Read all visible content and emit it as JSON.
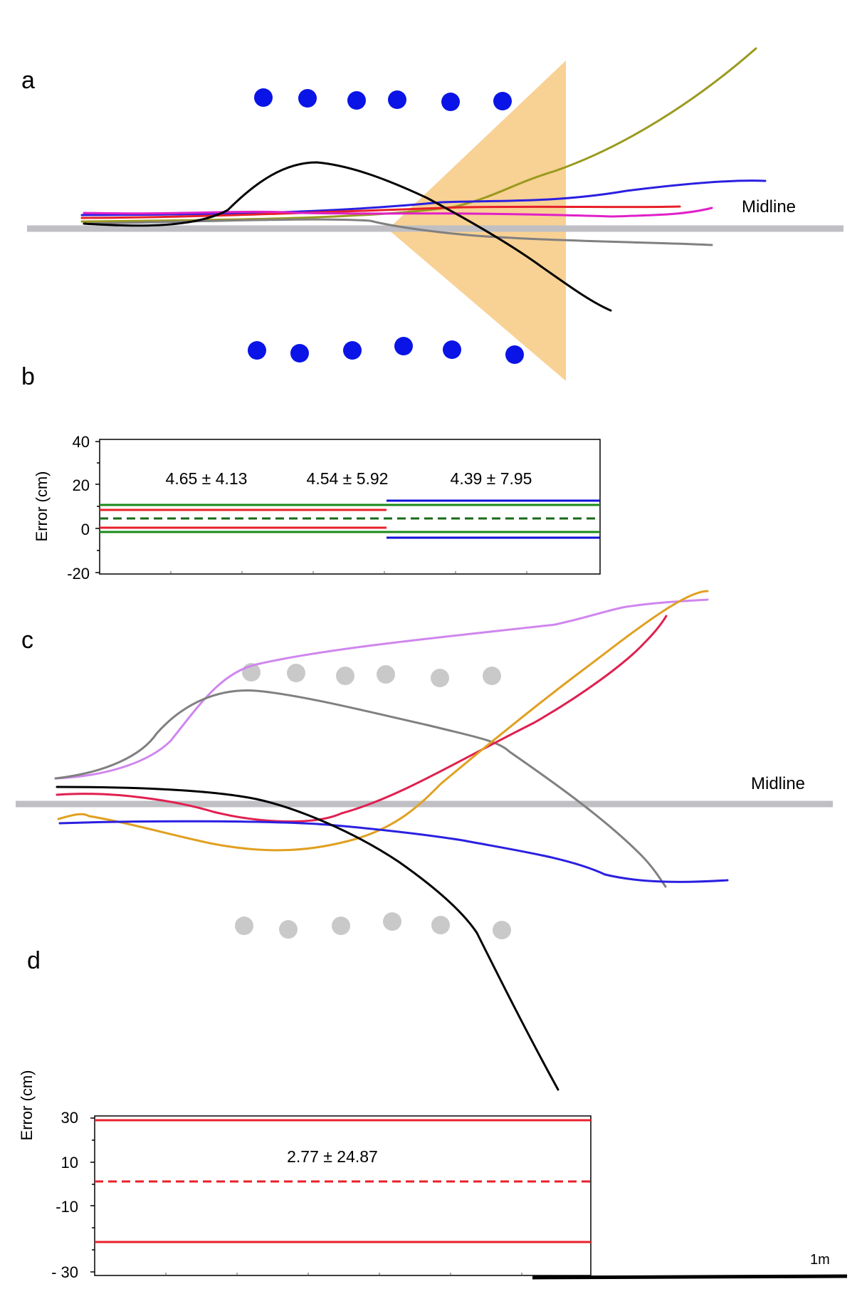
{
  "panels": {
    "a": {
      "label": "a",
      "midline_label": "Midline"
    },
    "b": {
      "label": "b",
      "ylabel": "Error (cm)",
      "yticks": [
        "40",
        "20",
        "0",
        "-20"
      ],
      "stats": [
        "4.65 ± 4.13",
        "4.54 ± 5.92",
        "4.39 ± 7.95"
      ]
    },
    "c": {
      "label": "c",
      "midline_label": "Midline"
    },
    "d": {
      "label": "d",
      "ylabel": "Error (cm)",
      "yticks": [
        "30",
        "10",
        "-10",
        "- 30"
      ],
      "stats": [
        "2.77 ± 24.87"
      ]
    }
  },
  "scale_bar": {
    "label": "1m"
  },
  "colors": {
    "landmark_a": "#0a14e6",
    "landmark_c": "#c9c9c9",
    "midline": "#bfbfc4",
    "fov": "#f8cf8e"
  }
}
